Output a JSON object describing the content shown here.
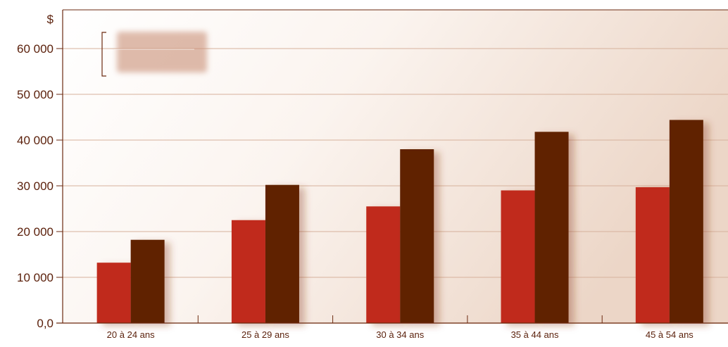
{
  "chart_data": {
    "type": "bar",
    "unit": "$",
    "categories": [
      "20 à 24 ans",
      "25 à 29 ans",
      "30 à 34 ans",
      "35 à 44 ans",
      "45 à 54 ans"
    ],
    "series": [
      {
        "values": [
          13200,
          22500,
          25500,
          29000,
          29700
        ],
        "color": "#c02b1c"
      },
      {
        "values": [
          18200,
          30200,
          38000,
          41800,
          44400
        ],
        "color": "#612000"
      }
    ],
    "yticks": [
      {
        "value": 0,
        "label": "0,0"
      },
      {
        "value": 10000,
        "label": "10 000"
      },
      {
        "value": 20000,
        "label": "20 000"
      },
      {
        "value": 30000,
        "label": "30 000"
      },
      {
        "value": 40000,
        "label": "40 000"
      },
      {
        "value": 50000,
        "label": "50 000"
      },
      {
        "value": 60000,
        "label": "60 000"
      }
    ],
    "ylim": [
      0,
      65000
    ],
    "grid": true,
    "legend": "top-left (obscured)"
  }
}
